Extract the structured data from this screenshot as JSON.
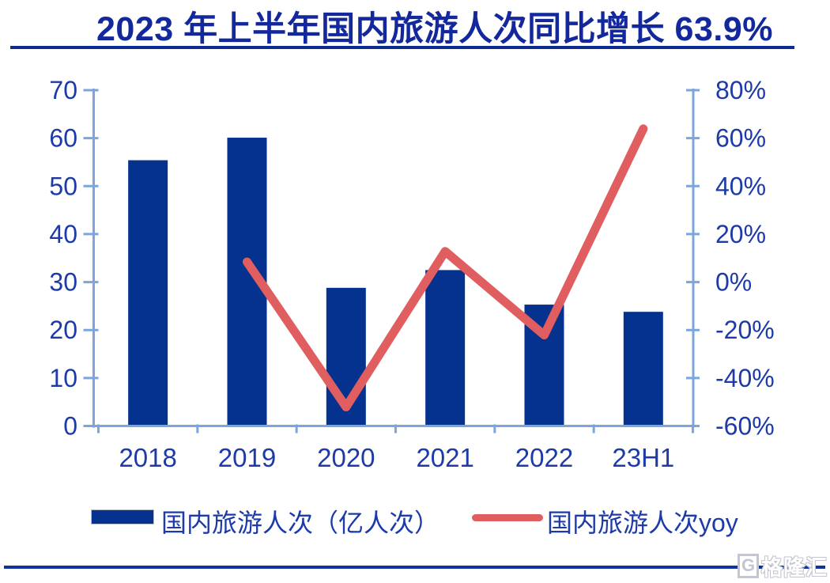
{
  "title": {
    "text": "2023 年上半年国内旅游人次同比增长 63.9%"
  },
  "chart_data": {
    "type": "combo-bar-line",
    "categories": [
      "2018",
      "2019",
      "2020",
      "2021",
      "2022",
      "23H1"
    ],
    "series": [
      {
        "name": "国内旅游人次（亿人次）",
        "type": "bar",
        "axis": "left",
        "values": [
          55.4,
          60.1,
          28.8,
          32.5,
          25.3,
          23.8
        ]
      },
      {
        "name": "国内旅游人次yoy",
        "type": "line",
        "axis": "right",
        "unit": "%",
        "values": [
          null,
          8.4,
          -52.1,
          12.8,
          -22.1,
          63.9
        ]
      }
    ],
    "left_axis": {
      "min": 0,
      "max": 70,
      "ticks": [
        "70",
        "60",
        "50",
        "40",
        "30",
        "20",
        "10",
        "0"
      ]
    },
    "right_axis": {
      "min": -60,
      "max": 80,
      "ticks": [
        "80%",
        "60%",
        "40%",
        "20%",
        "0%",
        "-20%",
        "-40%",
        "-60%"
      ]
    },
    "grid": false,
    "legend_position": "bottom",
    "colors": {
      "bar": "#05328F",
      "line": "#E05E5F",
      "axis": "#7CA5DC",
      "labels": "#1C3AA8",
      "title": "#12289C",
      "rule": "#0C2C94"
    }
  },
  "legend": {
    "items": [
      {
        "label": "国内旅游人次（亿人次）",
        "type": "bar"
      },
      {
        "label": "国内旅游人次yoy",
        "type": "line"
      }
    ]
  },
  "watermark": {
    "letter": "G",
    "text": "格隆汇"
  }
}
